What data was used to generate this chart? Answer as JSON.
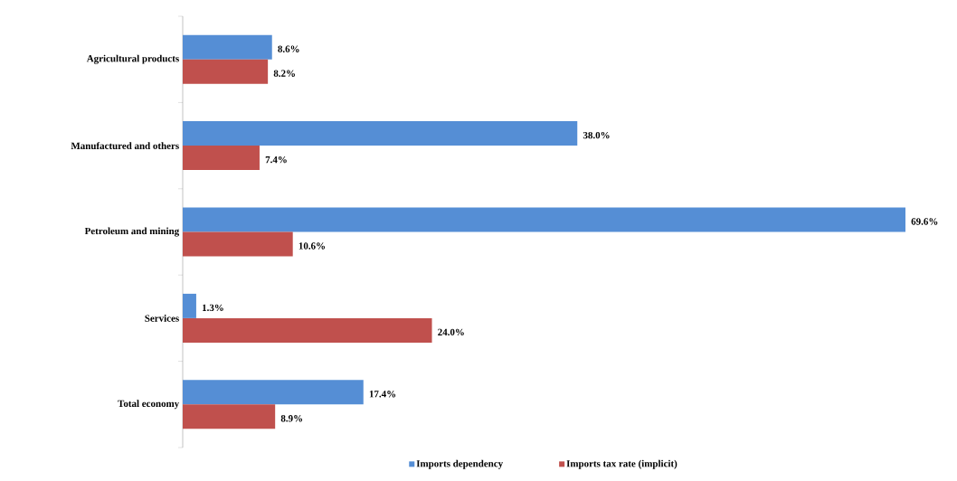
{
  "chart_data": {
    "type": "bar",
    "orientation": "horizontal",
    "categories": [
      "Agricultural products",
      "Manufactured and others",
      "Petroleum and mining",
      "Services",
      "Total economy"
    ],
    "series": [
      {
        "name": "Imports dependency",
        "color": "#558ed5",
        "values": [
          8.6,
          38.0,
          69.6,
          1.3,
          17.4
        ],
        "value_labels": [
          "8.6%",
          "38.0%",
          "69.6%",
          "1.3%",
          "17.4%"
        ]
      },
      {
        "name": "Imports tax rate (implicit)",
        "color": "#c0504d",
        "values": [
          8.2,
          7.4,
          10.6,
          24.0,
          8.9
        ],
        "value_labels": [
          "8.2%",
          "7.4%",
          "10.6%",
          "24.0%",
          "8.9%"
        ]
      }
    ],
    "legend": "bottom",
    "tick_labels": "y"
  }
}
